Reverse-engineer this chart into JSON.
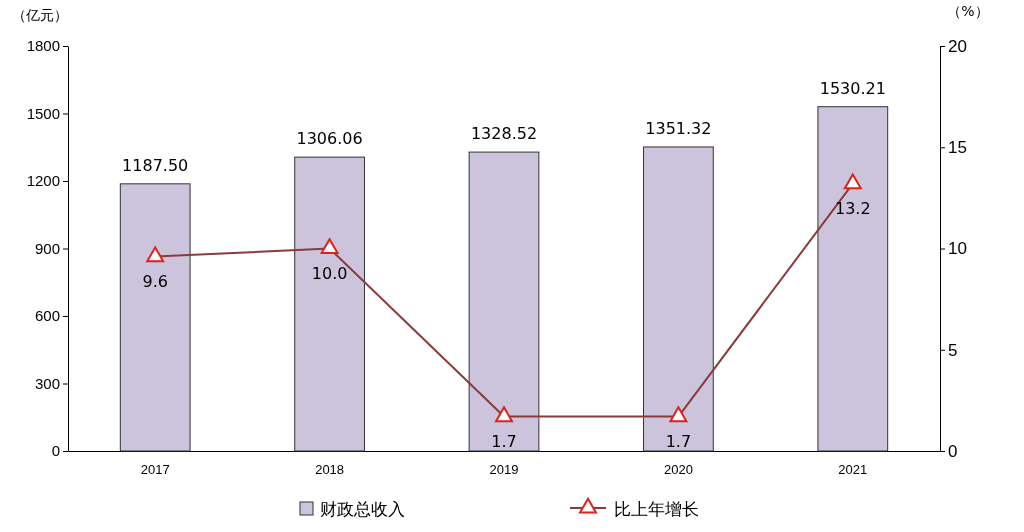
{
  "chart_data": {
    "type": "bar",
    "ylabel": "（亿元）",
    "y2label": "（%）",
    "categories": [
      "2017",
      "2018",
      "2019",
      "2020",
      "2021"
    ],
    "series": [
      {
        "name": "财政总收入",
        "color": "#ccc4dc",
        "values": [
          1187.5,
          1306.06,
          1328.52,
          1351.32,
          1530.21
        ],
        "value_labels": [
          "1187.50",
          "1306.06",
          "1328.52",
          "1351.32",
          "1530.21"
        ]
      },
      {
        "name": "比上年增长",
        "type": "line",
        "axis": "y2",
        "color": "#8b3a3a",
        "marker": "triangle",
        "values": [
          9.6,
          10.0,
          1.7,
          1.7,
          13.2
        ],
        "value_labels": [
          "9.6",
          "10.0",
          "1.7",
          "1.7",
          "13.2"
        ]
      }
    ],
    "ylim": [
      0,
      1800
    ],
    "yticks": [
      0,
      300,
      600,
      900,
      1200,
      1500,
      1800
    ],
    "y2lim": [
      0,
      20
    ],
    "y2ticks": [
      0,
      5,
      10,
      15,
      20
    ],
    "grid": false,
    "legend": "bottom"
  }
}
